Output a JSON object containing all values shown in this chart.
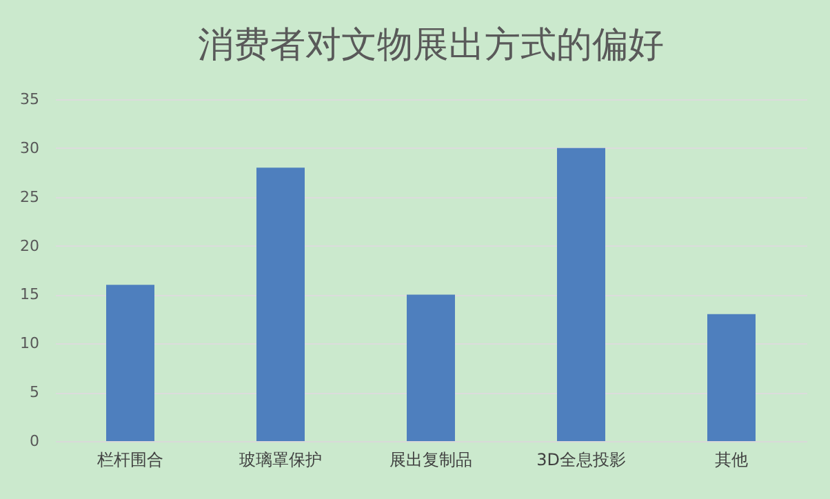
{
  "chart_data": {
    "type": "bar",
    "title": "消费者对文物展出方式的偏好",
    "categories": [
      "栏杆围合",
      "玻璃罩保护",
      "展出复制品",
      "3D全息投影",
      "其他"
    ],
    "values": [
      16,
      28,
      15,
      30,
      13
    ],
    "color": "#4e7fbe",
    "ylim": [
      0,
      35
    ],
    "yticks": [
      0,
      5,
      10,
      15,
      20,
      25,
      30,
      35
    ],
    "grid": "y"
  }
}
